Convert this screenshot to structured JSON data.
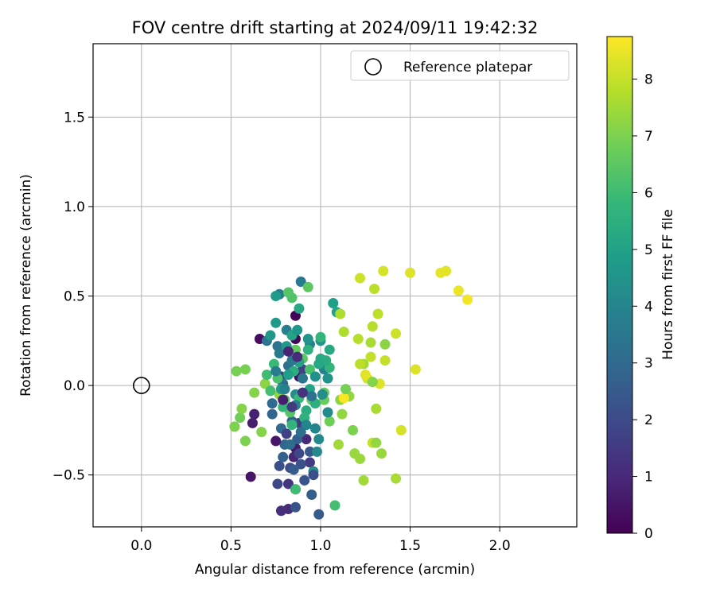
{
  "chart_data": {
    "type": "scatter",
    "title": "FOV centre drift starting at 2024/09/11 19:42:32",
    "xlabel": "Angular distance from reference (arcmin)",
    "ylabel": "Rotation from reference (arcmin)",
    "xlim": [
      -0.27,
      2.43
    ],
    "ylim": [
      -0.79,
      1.91
    ],
    "xticks": [
      {
        "value": 0.0,
        "label": "0.0"
      },
      {
        "value": 0.5,
        "label": "0.5"
      },
      {
        "value": 1.0,
        "label": "1.0"
      },
      {
        "value": 1.5,
        "label": "1.5"
      },
      {
        "value": 2.0,
        "label": "2.0"
      }
    ],
    "yticks": [
      {
        "value": -0.5,
        "label": "−0.5"
      },
      {
        "value": 0.0,
        "label": "0.0"
      },
      {
        "value": 0.5,
        "label": "0.5"
      },
      {
        "value": 1.0,
        "label": "1.0"
      },
      {
        "value": 1.5,
        "label": "1.5"
      }
    ],
    "grid": true,
    "legend": {
      "placement": "top-right",
      "entries": [
        {
          "label": "Reference platepar",
          "marker": "open-circle"
        }
      ]
    },
    "reference_point": {
      "x": 0.0,
      "y": 0.0
    },
    "colorbar": {
      "label": "Hours from first FF file",
      "colormap": "viridis",
      "range": [
        0,
        8.75
      ],
      "ticks": [
        {
          "value": 0,
          "label": "0"
        },
        {
          "value": 1,
          "label": "1"
        },
        {
          "value": 2,
          "label": "2"
        },
        {
          "value": 3,
          "label": "3"
        },
        {
          "value": 4,
          "label": "4"
        },
        {
          "value": 5,
          "label": "5"
        },
        {
          "value": 6,
          "label": "6"
        },
        {
          "value": 7,
          "label": "7"
        },
        {
          "value": 8,
          "label": "8"
        }
      ]
    },
    "colormap_stops": [
      "#440154",
      "#482878",
      "#3e4989",
      "#31688e",
      "#26828e",
      "#1f9e89",
      "#35b779",
      "#6ece58",
      "#b5de2b",
      "#fde725"
    ],
    "points": [
      [
        0.86,
        0.39,
        0.1
      ],
      [
        0.86,
        0.26,
        0.2
      ],
      [
        0.66,
        0.26,
        0.3
      ],
      [
        0.88,
        0.05,
        0.4
      ],
      [
        0.61,
        -0.51,
        0.5
      ],
      [
        0.86,
        -0.35,
        0.6
      ],
      [
        0.62,
        -0.21,
        0.7
      ],
      [
        0.63,
        -0.16,
        0.8
      ],
      [
        0.85,
        -0.4,
        0.9
      ],
      [
        0.92,
        -0.3,
        1.0
      ],
      [
        0.82,
        -0.69,
        1.1
      ],
      [
        0.78,
        -0.7,
        1.2
      ],
      [
        0.86,
        -0.58,
        1.3
      ],
      [
        0.82,
        -0.55,
        1.4
      ],
      [
        0.94,
        -0.43,
        1.5
      ],
      [
        0.88,
        -0.21,
        1.6
      ],
      [
        0.9,
        0.09,
        1.7
      ],
      [
        0.78,
        0.05,
        1.8
      ],
      [
        0.76,
        -0.55,
        1.9
      ],
      [
        0.83,
        -0.46,
        2.0
      ],
      [
        0.77,
        -0.45,
        2.1
      ],
      [
        0.89,
        -0.44,
        2.2
      ],
      [
        0.86,
        -0.68,
        2.3
      ],
      [
        0.94,
        -0.37,
        2.4
      ],
      [
        0.99,
        -0.72,
        2.5
      ],
      [
        0.95,
        -0.61,
        2.6
      ],
      [
        0.87,
        -0.3,
        2.7
      ],
      [
        0.84,
        -0.2,
        2.8
      ],
      [
        0.8,
        -0.33,
        2.9
      ],
      [
        0.73,
        -0.1,
        3.0
      ],
      [
        0.79,
        0.01,
        3.1
      ],
      [
        0.82,
        0.11,
        3.2
      ],
      [
        0.76,
        0.22,
        3.3
      ],
      [
        0.7,
        0.25,
        3.4
      ],
      [
        0.77,
        0.51,
        3.5
      ],
      [
        0.89,
        0.58,
        3.6
      ],
      [
        0.81,
        0.31,
        3.7
      ],
      [
        0.94,
        0.23,
        3.8
      ],
      [
        1.02,
        0.09,
        3.9
      ],
      [
        0.97,
        -0.24,
        4.0
      ],
      [
        0.98,
        -0.37,
        4.1
      ],
      [
        0.96,
        -0.48,
        4.2
      ],
      [
        0.86,
        -0.05,
        4.3
      ],
      [
        1.04,
        0.04,
        4.4
      ],
      [
        1.0,
        0.25,
        4.5
      ],
      [
        0.72,
        0.28,
        4.6
      ],
      [
        0.75,
        0.35,
        4.7
      ],
      [
        0.75,
        0.5,
        4.8
      ],
      [
        1.07,
        0.46,
        4.9
      ],
      [
        1.09,
        0.41,
        5.0
      ],
      [
        0.84,
        0.28,
        5.1
      ],
      [
        0.88,
        0.43,
        5.2
      ],
      [
        1.0,
        0.15,
        5.3
      ],
      [
        0.92,
        -0.14,
        5.4
      ],
      [
        0.85,
        0.08,
        5.5
      ],
      [
        0.93,
        0.2,
        5.6
      ],
      [
        1.05,
        0.1,
        5.7
      ],
      [
        1.0,
        0.27,
        5.8
      ],
      [
        0.88,
        -0.07,
        5.9
      ],
      [
        0.86,
        -0.58,
        6.0
      ],
      [
        1.08,
        -0.67,
        6.1
      ],
      [
        0.94,
        0.09,
        6.2
      ],
      [
        0.84,
        0.49,
        6.3
      ],
      [
        0.82,
        0.52,
        6.4
      ],
      [
        0.93,
        0.55,
        6.5
      ],
      [
        0.86,
        0.2,
        6.6
      ],
      [
        1.02,
        -0.04,
        6.7
      ],
      [
        0.55,
        -0.18,
        6.8
      ],
      [
        0.58,
        0.09,
        6.9
      ],
      [
        0.53,
        0.08,
        6.9
      ],
      [
        0.52,
        -0.23,
        7.0
      ],
      [
        0.58,
        -0.31,
        7.0
      ],
      [
        0.63,
        -0.04,
        7.1
      ],
      [
        0.67,
        -0.26,
        7.1
      ],
      [
        0.56,
        -0.13,
        7.1
      ],
      [
        0.69,
        0.01,
        7.2
      ],
      [
        0.77,
        -0.05,
        7.2
      ],
      [
        1.11,
        -0.08,
        7.2
      ],
      [
        1.12,
        -0.16,
        7.3
      ],
      [
        1.16,
        -0.06,
        7.3
      ],
      [
        1.19,
        -0.38,
        7.4
      ],
      [
        1.22,
        -0.41,
        7.4
      ],
      [
        1.1,
        -0.33,
        7.5
      ],
      [
        1.24,
        0.12,
        7.5
      ],
      [
        1.28,
        0.24,
        7.6
      ],
      [
        1.31,
        -0.13,
        7.6
      ],
      [
        1.11,
        0.4,
        7.7
      ],
      [
        1.13,
        0.3,
        7.7
      ],
      [
        1.21,
        0.26,
        7.8
      ],
      [
        1.29,
        0.33,
        7.8
      ],
      [
        1.32,
        0.4,
        7.9
      ],
      [
        1.3,
        0.54,
        7.9
      ],
      [
        1.29,
        -0.32,
        8.0
      ],
      [
        1.36,
        0.14,
        8.0
      ],
      [
        1.42,
        0.29,
        8.1
      ],
      [
        1.22,
        0.6,
        8.1
      ],
      [
        1.35,
        0.64,
        8.2
      ],
      [
        1.45,
        -0.25,
        8.2
      ],
      [
        1.53,
        0.09,
        8.3
      ],
      [
        1.5,
        0.63,
        8.3
      ],
      [
        1.67,
        0.63,
        8.4
      ],
      [
        1.7,
        0.64,
        8.4
      ],
      [
        1.77,
        0.53,
        8.5
      ],
      [
        1.82,
        0.48,
        8.6
      ],
      [
        1.13,
        -0.07,
        8.7
      ],
      [
        1.26,
        0.04,
        8.2
      ],
      [
        1.28,
        0.16,
        8.0
      ],
      [
        1.33,
        0.01,
        8.3
      ],
      [
        1.22,
        0.12,
        7.9
      ],
      [
        1.25,
        0.06,
        8.4
      ],
      [
        1.42,
        -0.52,
        7.6
      ],
      [
        1.24,
        -0.53,
        7.5
      ],
      [
        1.34,
        -0.38,
        7.4
      ],
      [
        1.31,
        -0.32,
        7.3
      ],
      [
        1.36,
        0.23,
        7.2
      ],
      [
        1.29,
        0.02,
        7.1
      ],
      [
        1.18,
        -0.25,
        7.0
      ],
      [
        1.14,
        -0.02,
        6.9
      ],
      [
        1.05,
        -0.2,
        6.8
      ],
      [
        1.02,
        -0.08,
        6.7
      ],
      [
        0.95,
        -0.08,
        6.6
      ],
      [
        0.9,
        0.15,
        6.5
      ],
      [
        0.83,
        -0.15,
        6.4
      ],
      [
        0.8,
        -0.08,
        6.3
      ],
      [
        0.76,
        0.04,
        6.2
      ],
      [
        0.72,
        -0.03,
        6.1
      ],
      [
        0.7,
        0.06,
        6.0
      ],
      [
        0.74,
        0.12,
        5.9
      ],
      [
        0.79,
        -0.12,
        5.8
      ],
      [
        0.84,
        -0.22,
        5.7
      ],
      [
        0.91,
        -0.18,
        5.6
      ],
      [
        0.97,
        -0.1,
        5.5
      ],
      [
        1.03,
        0.14,
        5.4
      ],
      [
        1.05,
        0.2,
        5.3
      ],
      [
        0.99,
        0.12,
        5.2
      ],
      [
        0.94,
        -0.02,
        5.1
      ],
      [
        0.88,
        0.13,
        5.0
      ],
      [
        0.82,
        0.06,
        4.9
      ],
      [
        0.78,
        -0.02,
        4.8
      ],
      [
        0.81,
        0.22,
        4.7
      ],
      [
        0.87,
        0.31,
        4.6
      ],
      [
        0.93,
        0.26,
        4.5
      ],
      [
        0.97,
        0.05,
        4.4
      ],
      [
        1.01,
        -0.05,
        4.3
      ],
      [
        1.04,
        -0.15,
        4.2
      ],
      [
        0.99,
        -0.3,
        4.1
      ],
      [
        0.92,
        -0.22,
        4.0
      ],
      [
        0.86,
        -0.11,
        3.9
      ],
      [
        0.8,
        -0.02,
        3.8
      ],
      [
        0.75,
        0.08,
        3.7
      ],
      [
        0.77,
        0.18,
        3.6
      ],
      [
        0.84,
        0.14,
        3.5
      ],
      [
        0.9,
        0.04,
        3.4
      ],
      [
        0.95,
        -0.06,
        3.3
      ],
      [
        0.89,
        -0.26,
        3.2
      ],
      [
        0.83,
        -0.33,
        3.1
      ],
      [
        0.78,
        -0.24,
        3.0
      ],
      [
        0.73,
        -0.16,
        2.9
      ],
      [
        0.79,
        -0.4,
        2.7
      ],
      [
        0.85,
        -0.47,
        2.5
      ],
      [
        0.91,
        -0.53,
        2.3
      ],
      [
        0.96,
        -0.5,
        2.1
      ],
      [
        0.88,
        -0.38,
        1.9
      ],
      [
        0.81,
        -0.27,
        1.7
      ],
      [
        0.84,
        -0.12,
        1.5
      ],
      [
        0.9,
        -0.04,
        1.3
      ],
      [
        0.87,
        0.16,
        1.1
      ],
      [
        0.82,
        0.19,
        0.9
      ],
      [
        0.79,
        -0.08,
        0.7
      ],
      [
        0.75,
        -0.31,
        0.5
      ]
    ]
  }
}
